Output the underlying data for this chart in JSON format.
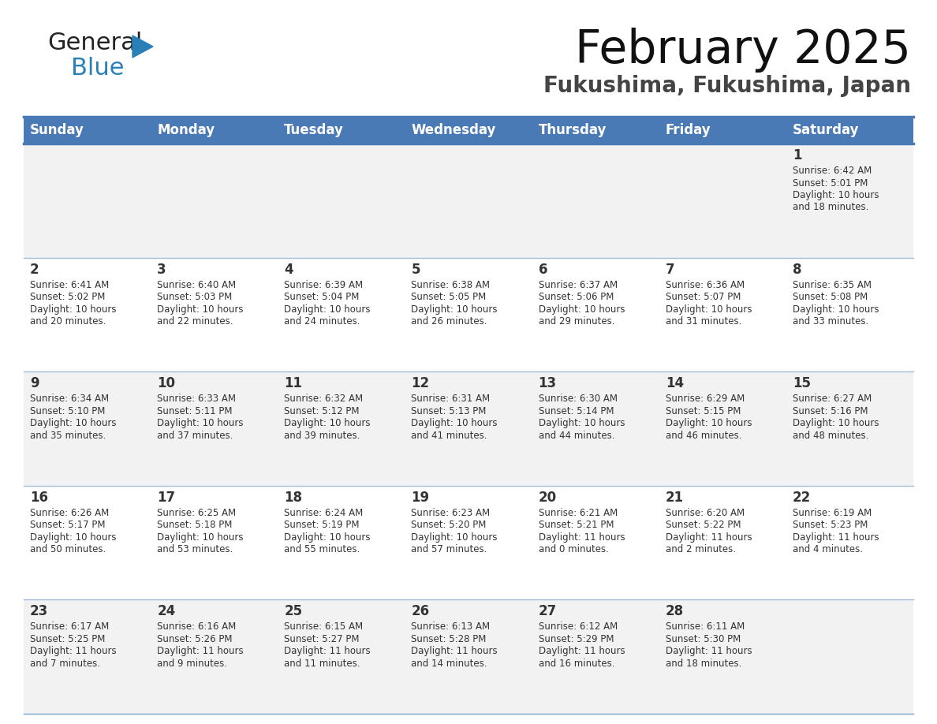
{
  "title": "February 2025",
  "subtitle": "Fukushima, Fukushima, Japan",
  "header_color": "#4a7ab5",
  "header_text_color": "#FFFFFF",
  "cell_bg_color_odd": "#f2f2f2",
  "cell_bg_color_even": "#ffffff",
  "border_color": "#4a7ab5",
  "divider_color": "#7aa3cc",
  "text_color": "#333333",
  "day_headers": [
    "Sunday",
    "Monday",
    "Tuesday",
    "Wednesday",
    "Thursday",
    "Friday",
    "Saturday"
  ],
  "days": [
    {
      "day": 1,
      "col": 6,
      "row": 0,
      "sunrise": "6:42 AM",
      "sunset": "5:01 PM",
      "daylight": "10 hours and 18 minutes"
    },
    {
      "day": 2,
      "col": 0,
      "row": 1,
      "sunrise": "6:41 AM",
      "sunset": "5:02 PM",
      "daylight": "10 hours and 20 minutes"
    },
    {
      "day": 3,
      "col": 1,
      "row": 1,
      "sunrise": "6:40 AM",
      "sunset": "5:03 PM",
      "daylight": "10 hours and 22 minutes"
    },
    {
      "day": 4,
      "col": 2,
      "row": 1,
      "sunrise": "6:39 AM",
      "sunset": "5:04 PM",
      "daylight": "10 hours and 24 minutes"
    },
    {
      "day": 5,
      "col": 3,
      "row": 1,
      "sunrise": "6:38 AM",
      "sunset": "5:05 PM",
      "daylight": "10 hours and 26 minutes"
    },
    {
      "day": 6,
      "col": 4,
      "row": 1,
      "sunrise": "6:37 AM",
      "sunset": "5:06 PM",
      "daylight": "10 hours and 29 minutes"
    },
    {
      "day": 7,
      "col": 5,
      "row": 1,
      "sunrise": "6:36 AM",
      "sunset": "5:07 PM",
      "daylight": "10 hours and 31 minutes"
    },
    {
      "day": 8,
      "col": 6,
      "row": 1,
      "sunrise": "6:35 AM",
      "sunset": "5:08 PM",
      "daylight": "10 hours and 33 minutes"
    },
    {
      "day": 9,
      "col": 0,
      "row": 2,
      "sunrise": "6:34 AM",
      "sunset": "5:10 PM",
      "daylight": "10 hours and 35 minutes"
    },
    {
      "day": 10,
      "col": 1,
      "row": 2,
      "sunrise": "6:33 AM",
      "sunset": "5:11 PM",
      "daylight": "10 hours and 37 minutes"
    },
    {
      "day": 11,
      "col": 2,
      "row": 2,
      "sunrise": "6:32 AM",
      "sunset": "5:12 PM",
      "daylight": "10 hours and 39 minutes"
    },
    {
      "day": 12,
      "col": 3,
      "row": 2,
      "sunrise": "6:31 AM",
      "sunset": "5:13 PM",
      "daylight": "10 hours and 41 minutes"
    },
    {
      "day": 13,
      "col": 4,
      "row": 2,
      "sunrise": "6:30 AM",
      "sunset": "5:14 PM",
      "daylight": "10 hours and 44 minutes"
    },
    {
      "day": 14,
      "col": 5,
      "row": 2,
      "sunrise": "6:29 AM",
      "sunset": "5:15 PM",
      "daylight": "10 hours and 46 minutes"
    },
    {
      "day": 15,
      "col": 6,
      "row": 2,
      "sunrise": "6:27 AM",
      "sunset": "5:16 PM",
      "daylight": "10 hours and 48 minutes"
    },
    {
      "day": 16,
      "col": 0,
      "row": 3,
      "sunrise": "6:26 AM",
      "sunset": "5:17 PM",
      "daylight": "10 hours and 50 minutes"
    },
    {
      "day": 17,
      "col": 1,
      "row": 3,
      "sunrise": "6:25 AM",
      "sunset": "5:18 PM",
      "daylight": "10 hours and 53 minutes"
    },
    {
      "day": 18,
      "col": 2,
      "row": 3,
      "sunrise": "6:24 AM",
      "sunset": "5:19 PM",
      "daylight": "10 hours and 55 minutes"
    },
    {
      "day": 19,
      "col": 3,
      "row": 3,
      "sunrise": "6:23 AM",
      "sunset": "5:20 PM",
      "daylight": "10 hours and 57 minutes"
    },
    {
      "day": 20,
      "col": 4,
      "row": 3,
      "sunrise": "6:21 AM",
      "sunset": "5:21 PM",
      "daylight": "11 hours and 0 minutes"
    },
    {
      "day": 21,
      "col": 5,
      "row": 3,
      "sunrise": "6:20 AM",
      "sunset": "5:22 PM",
      "daylight": "11 hours and 2 minutes"
    },
    {
      "day": 22,
      "col": 6,
      "row": 3,
      "sunrise": "6:19 AM",
      "sunset": "5:23 PM",
      "daylight": "11 hours and 4 minutes"
    },
    {
      "day": 23,
      "col": 0,
      "row": 4,
      "sunrise": "6:17 AM",
      "sunset": "5:25 PM",
      "daylight": "11 hours and 7 minutes"
    },
    {
      "day": 24,
      "col": 1,
      "row": 4,
      "sunrise": "6:16 AM",
      "sunset": "5:26 PM",
      "daylight": "11 hours and 9 minutes"
    },
    {
      "day": 25,
      "col": 2,
      "row": 4,
      "sunrise": "6:15 AM",
      "sunset": "5:27 PM",
      "daylight": "11 hours and 11 minutes"
    },
    {
      "day": 26,
      "col": 3,
      "row": 4,
      "sunrise": "6:13 AM",
      "sunset": "5:28 PM",
      "daylight": "11 hours and 14 minutes"
    },
    {
      "day": 27,
      "col": 4,
      "row": 4,
      "sunrise": "6:12 AM",
      "sunset": "5:29 PM",
      "daylight": "11 hours and 16 minutes"
    },
    {
      "day": 28,
      "col": 5,
      "row": 4,
      "sunrise": "6:11 AM",
      "sunset": "5:30 PM",
      "daylight": "11 hours and 18 minutes"
    }
  ],
  "num_rows": 5,
  "num_cols": 7,
  "logo_general_color": "#222222",
  "logo_blue_color": "#2980b9",
  "logo_triangle_color": "#2980b9",
  "title_fontsize": 42,
  "subtitle_fontsize": 20,
  "header_fontsize": 12,
  "day_num_fontsize": 12,
  "cell_text_fontsize": 8.5
}
